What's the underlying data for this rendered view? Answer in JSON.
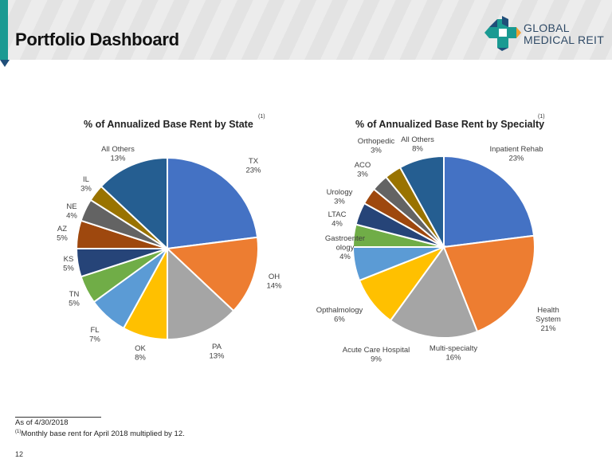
{
  "header": {
    "title": "Portfolio Dashboard",
    "logo_line1": "GLOBAL",
    "logo_line2": "MEDICAL REIT",
    "accent_color": "#1a9a92"
  },
  "chart_data": [
    {
      "type": "pie",
      "title": "% of Annualized Base Rent by State",
      "title_superscript": "(1)",
      "categories": [
        "TX",
        "OH",
        "PA",
        "OK",
        "FL",
        "TN",
        "KS",
        "AZ",
        "NE",
        "IL",
        "All Others"
      ],
      "values": [
        23,
        14,
        13,
        8,
        7,
        5,
        5,
        5,
        4,
        3,
        13
      ],
      "value_labels": [
        "23%",
        "14%",
        "13%",
        "8%",
        "7%",
        "5%",
        "5%",
        "5%",
        "4%",
        "3%",
        "13%"
      ],
      "colors": [
        "#4472c4",
        "#ed7d31",
        "#a5a5a5",
        "#ffc000",
        "#5b9bd5",
        "#70ad47",
        "#264478",
        "#9e480e",
        "#636363",
        "#997300",
        "#255e91"
      ],
      "unit": "%",
      "start": "12 o'clock, clockwise"
    },
    {
      "type": "pie",
      "title": "% of Annualized Base Rent by Specialty",
      "title_superscript": "(1)",
      "categories": [
        "Inpatient Rehab",
        "Health System",
        "Multi-specialty",
        "Acute Care Hospital",
        "Opthalmology",
        "Gastroenterology",
        "LTAC",
        "Urology",
        "ACO",
        "Orthopedic",
        "All Others"
      ],
      "label_lines": [
        [
          "Inpatient Rehab"
        ],
        [
          "Health",
          "System"
        ],
        [
          "Multi-specialty"
        ],
        [
          "Acute Care Hospital"
        ],
        [
          "Opthalmology"
        ],
        [
          "Gastroenter",
          "ology"
        ],
        [
          "LTAC"
        ],
        [
          "Urology"
        ],
        [
          "ACO"
        ],
        [
          "Orthopedic"
        ],
        [
          "All Others"
        ]
      ],
      "values": [
        23,
        21,
        16,
        9,
        6,
        4,
        4,
        3,
        3,
        3,
        8
      ],
      "value_labels": [
        "23%",
        "21%",
        "16%",
        "9%",
        "6%",
        "4%",
        "4%",
        "3%",
        "3%",
        "3%",
        "8%"
      ],
      "colors": [
        "#4472c4",
        "#ed7d31",
        "#a5a5a5",
        "#ffc000",
        "#5b9bd5",
        "#70ad47",
        "#264478",
        "#9e480e",
        "#636363",
        "#997300",
        "#255e91"
      ],
      "unit": "%",
      "start": "12 o'clock, clockwise"
    }
  ],
  "footnotes": {
    "as_of": "As of 4/30/2018",
    "marker": "(1)",
    "note": "Monthly base rent for April 2018 multiplied by 12."
  },
  "page_number": "12"
}
